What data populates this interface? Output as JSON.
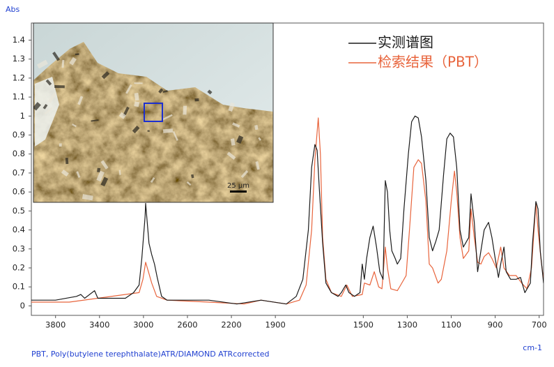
{
  "chart_data": {
    "type": "line",
    "y_label": "Abs",
    "x_label": "cm-1",
    "caption": "PBT, Poly(butylene terephthalate)ATR/DIAMOND  ATRcorrected",
    "xlim": [
      4020,
      680
    ],
    "xscale": {
      "break": 2000,
      "ratio": 2
    },
    "xticks": [
      3800,
      3400,
      3000,
      2600,
      2200,
      1900,
      1500,
      1300,
      1100,
      900,
      700
    ],
    "ylim": [
      -0.05,
      1.49
    ],
    "yticks": [
      0,
      0.1,
      0.2,
      0.3,
      0.4,
      0.5,
      0.6,
      0.7,
      0.8,
      0.9,
      1,
      1.1,
      1.2,
      1.3,
      1.4
    ],
    "grid": false,
    "legend": "upper right",
    "inset": {
      "scale_label": "25 μm"
    },
    "series": [
      {
        "name": "实测谱图",
        "color": "#1a1a1a",
        "x": [
          4020,
          3800,
          3610,
          3570,
          3535,
          3445,
          3415,
          3165,
          3090,
          3040,
          3015,
          2985,
          2980,
          2970,
          2950,
          2925,
          2900,
          2875,
          2835,
          2785,
          2405,
          2150,
          1965,
          1850,
          1805,
          1775,
          1750,
          1735,
          1720,
          1710,
          1700,
          1685,
          1670,
          1645,
          1615,
          1600,
          1580,
          1565,
          1540,
          1515,
          1505,
          1495,
          1485,
          1470,
          1455,
          1440,
          1425,
          1410,
          1400,
          1390,
          1380,
          1370,
          1355,
          1345,
          1330,
          1315,
          1295,
          1280,
          1265,
          1250,
          1235,
          1215,
          1200,
          1185,
          1170,
          1155,
          1135,
          1120,
          1105,
          1090,
          1075,
          1060,
          1045,
          1020,
          1010,
          995,
          980,
          965,
          950,
          930,
          915,
          900,
          885,
          875,
          860,
          850,
          830,
          805,
          785,
          765,
          740,
          730,
          715,
          705,
          695,
          680
        ],
        "values": [
          0.03,
          0.03,
          0.05,
          0.06,
          0.04,
          0.08,
          0.04,
          0.04,
          0.07,
          0.11,
          0.25,
          0.47,
          0.54,
          0.47,
          0.33,
          0.27,
          0.22,
          0.15,
          0.05,
          0.03,
          0.03,
          0.01,
          0.03,
          0.01,
          0.05,
          0.14,
          0.4,
          0.73,
          0.85,
          0.82,
          0.62,
          0.33,
          0.12,
          0.07,
          0.05,
          0.07,
          0.11,
          0.07,
          0.05,
          0.07,
          0.22,
          0.14,
          0.25,
          0.36,
          0.42,
          0.31,
          0.18,
          0.14,
          0.66,
          0.6,
          0.4,
          0.29,
          0.25,
          0.22,
          0.25,
          0.51,
          0.8,
          0.97,
          1.0,
          0.99,
          0.89,
          0.66,
          0.36,
          0.29,
          0.34,
          0.4,
          0.69,
          0.88,
          0.91,
          0.89,
          0.73,
          0.4,
          0.31,
          0.36,
          0.59,
          0.44,
          0.18,
          0.29,
          0.4,
          0.44,
          0.36,
          0.25,
          0.15,
          0.22,
          0.31,
          0.18,
          0.14,
          0.14,
          0.15,
          0.07,
          0.12,
          0.33,
          0.55,
          0.51,
          0.29,
          0.12
        ]
      },
      {
        "name": "检索结果（PBT）",
        "color": "#e8643c",
        "x": [
          4020,
          3675,
          3040,
          3005,
          2980,
          2955,
          2925,
          2880,
          2785,
          2405,
          2085,
          1965,
          1850,
          1790,
          1760,
          1735,
          1720,
          1705,
          1695,
          1685,
          1670,
          1645,
          1600,
          1575,
          1550,
          1505,
          1495,
          1470,
          1450,
          1430,
          1415,
          1400,
          1390,
          1375,
          1345,
          1330,
          1305,
          1290,
          1270,
          1250,
          1235,
          1215,
          1200,
          1185,
          1160,
          1145,
          1120,
          1100,
          1085,
          1075,
          1060,
          1045,
          1020,
          1010,
          995,
          980,
          965,
          950,
          930,
          915,
          895,
          875,
          860,
          835,
          805,
          780,
          755,
          735,
          715,
          705,
          690,
          680
        ],
        "values": [
          0.02,
          0.02,
          0.07,
          0.14,
          0.23,
          0.18,
          0.12,
          0.05,
          0.03,
          0.02,
          0.01,
          0.03,
          0.01,
          0.03,
          0.11,
          0.4,
          0.77,
          0.99,
          0.8,
          0.36,
          0.14,
          0.07,
          0.05,
          0.11,
          0.05,
          0.06,
          0.12,
          0.11,
          0.18,
          0.1,
          0.09,
          0.31,
          0.2,
          0.09,
          0.08,
          0.11,
          0.16,
          0.4,
          0.73,
          0.77,
          0.75,
          0.55,
          0.22,
          0.2,
          0.12,
          0.14,
          0.29,
          0.55,
          0.71,
          0.6,
          0.36,
          0.25,
          0.29,
          0.51,
          0.36,
          0.23,
          0.22,
          0.26,
          0.28,
          0.25,
          0.2,
          0.31,
          0.2,
          0.16,
          0.16,
          0.12,
          0.09,
          0.2,
          0.54,
          0.4,
          0.23,
          0.14
        ]
      }
    ]
  }
}
